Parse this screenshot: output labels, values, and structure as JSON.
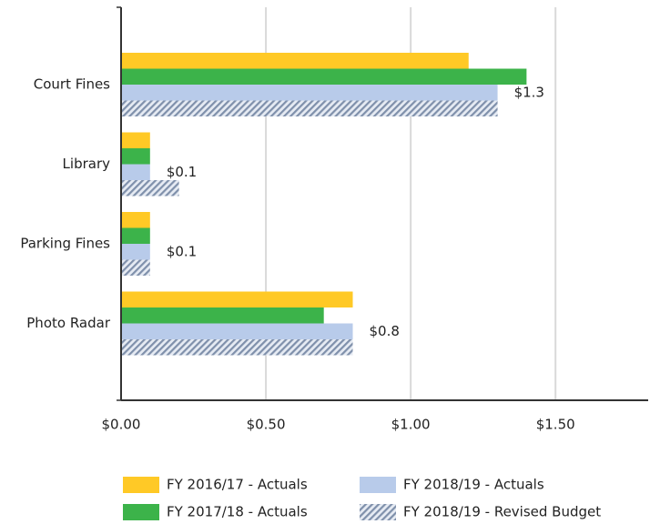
{
  "chart_data": {
    "type": "hbar",
    "categories": [
      "Court Fines",
      "Library",
      "Parking Fines",
      "Photo Radar"
    ],
    "series": [
      {
        "name": "FY 2016/17 - Actuals",
        "color": "#ffc926",
        "values": [
          1.2,
          0.1,
          0.1,
          0.8
        ]
      },
      {
        "name": "FY 2017/18 - Actuals",
        "color": "#3cb34a",
        "values": [
          1.4,
          0.1,
          0.1,
          0.7
        ]
      },
      {
        "name": "FY 2018/19 - Actuals",
        "color": "#b8cbea",
        "values": [
          1.3,
          0.1,
          0.1,
          0.8
        ],
        "value_labels": [
          "$1.3",
          "$0.1",
          "$0.1",
          "$0.8"
        ]
      },
      {
        "name": "FY 2018/19 - Revised Budget",
        "color": "#7f90ab",
        "pattern": "hatch",
        "values": [
          1.3,
          0.2,
          0.1,
          0.8
        ]
      }
    ],
    "xlim": [
      0,
      1.82
    ],
    "xticks": [
      {
        "value": 0,
        "label": "$0.00"
      },
      {
        "value": 0.5,
        "label": "$0.50"
      },
      {
        "value": 1,
        "label": "$1.00"
      },
      {
        "value": 1.5,
        "label": "$1.50"
      }
    ],
    "grid": true,
    "legend": "bottom"
  }
}
